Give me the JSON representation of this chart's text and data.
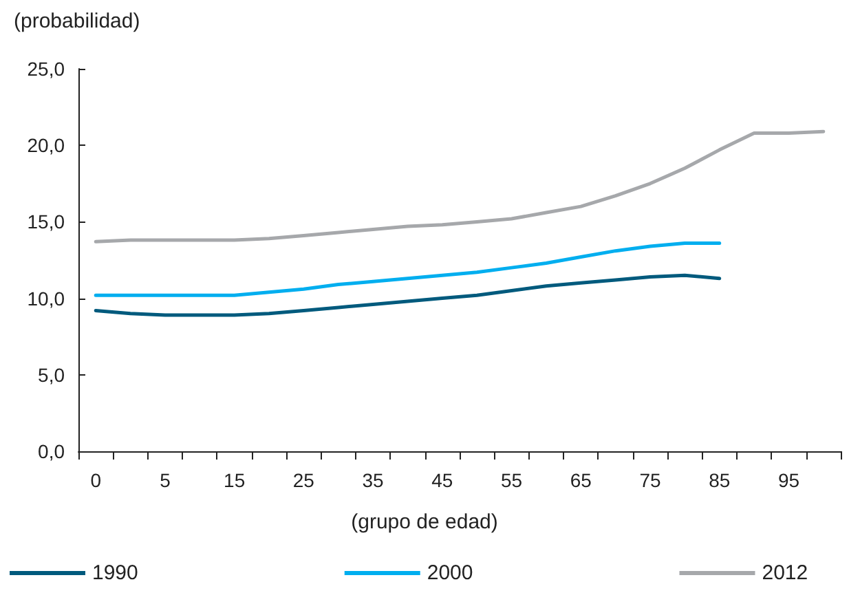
{
  "chart_data": {
    "type": "line",
    "ylabel": "(probabilidad)",
    "xlabel": "(grupo de edad)",
    "categories": [
      "0",
      null,
      "5",
      null,
      "15",
      null,
      "25",
      null,
      "35",
      null,
      "45",
      null,
      "55",
      null,
      "65",
      null,
      "75",
      null,
      "85",
      null,
      "95",
      null
    ],
    "series": [
      {
        "name": "1990",
        "color": "#005a7d",
        "values": [
          9.2,
          9.0,
          8.9,
          8.9,
          8.9,
          9.0,
          9.2,
          9.4,
          9.6,
          9.8,
          10.0,
          10.2,
          10.5,
          10.8,
          11.0,
          11.2,
          11.4,
          11.5,
          11.3,
          null,
          null,
          null
        ]
      },
      {
        "name": "2000",
        "color": "#00aeef",
        "values": [
          10.2,
          10.2,
          10.2,
          10.2,
          10.2,
          10.4,
          10.6,
          10.9,
          11.1,
          11.3,
          11.5,
          11.7,
          12.0,
          12.3,
          12.7,
          13.1,
          13.4,
          13.6,
          13.6,
          null,
          null,
          null
        ]
      },
      {
        "name": "2012",
        "color": "#a6a8ab",
        "values": [
          13.7,
          13.8,
          13.8,
          13.8,
          13.8,
          13.9,
          14.1,
          14.3,
          14.5,
          14.7,
          14.8,
          15.0,
          15.2,
          15.6,
          16.0,
          16.7,
          17.5,
          18.5,
          19.7,
          20.8,
          20.8,
          20.9
        ]
      }
    ],
    "ylim": [
      0,
      25
    ],
    "yticks": [
      {
        "value": 0,
        "label": "0,0"
      },
      {
        "value": 5,
        "label": "5,0"
      },
      {
        "value": 10,
        "label": "10,0"
      },
      {
        "value": 15,
        "label": "15,0"
      },
      {
        "value": 20,
        "label": "20,0"
      },
      {
        "value": 25,
        "label": "25,0"
      }
    ],
    "grid": false,
    "legend": "bottom",
    "marker": "none",
    "line_style": "solid"
  }
}
